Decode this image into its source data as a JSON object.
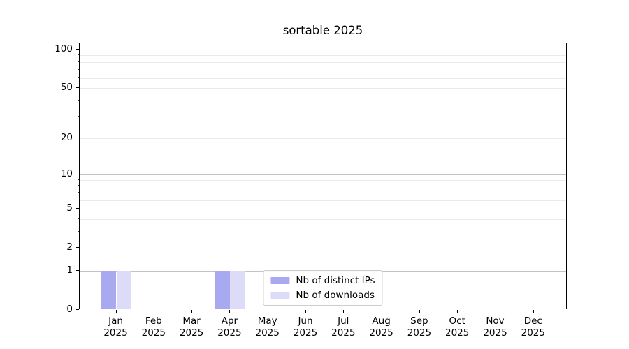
{
  "title": "sortable 2025",
  "chart_data": {
    "type": "bar",
    "title": "sortable 2025",
    "x_categories": [
      "Jan",
      "Feb",
      "Mar",
      "Apr",
      "May",
      "Jun",
      "Jul",
      "Aug",
      "Sep",
      "Oct",
      "Nov",
      "Dec"
    ],
    "x_year": "2025",
    "series": [
      {
        "name": "Nb of distinct IPs",
        "color": "#a9a9f2",
        "values": [
          1,
          0,
          0,
          1,
          0,
          0,
          0,
          0,
          0,
          0,
          0,
          0
        ]
      },
      {
        "name": "Nb of downloads",
        "color": "#dcdcf9",
        "values": [
          1,
          0,
          0,
          1,
          0,
          0,
          0,
          0,
          0,
          0,
          0,
          0
        ]
      }
    ],
    "y_scale": "log1p",
    "y_tick_labels": [
      0,
      1,
      2,
      5,
      10,
      20,
      50,
      100
    ],
    "y_major_gridlines": [
      1,
      10,
      100
    ],
    "y_minor_gridlines": [
      2,
      3,
      4,
      5,
      6,
      7,
      8,
      9,
      20,
      30,
      40,
      50,
      60,
      70,
      80,
      90
    ],
    "ylim": [
      0,
      112
    ],
    "grid": "horizontal",
    "legend_position": "lower center",
    "colors": {
      "major_grid": "#c3c3c3",
      "minor_grid": "#ebebeb",
      "spine": "#000000",
      "text": "#000000",
      "legend_border": "#cccccc"
    }
  }
}
